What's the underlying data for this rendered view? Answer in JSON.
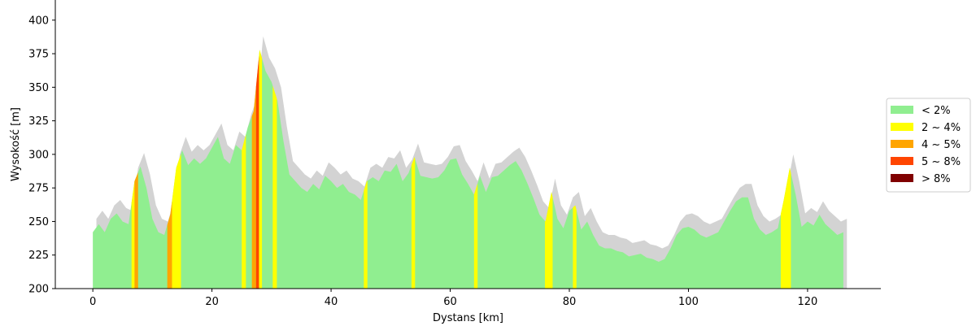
{
  "chart_data": {
    "type": "area",
    "xlabel": "Dystans [km]",
    "ylabel": "Wysokość [m]",
    "xlim": [
      -6.3,
      132.3
    ],
    "ylim": [
      200,
      415
    ],
    "x_ticks": [
      0,
      20,
      40,
      60,
      80,
      100,
      120
    ],
    "y_ticks": [
      200,
      225,
      250,
      275,
      300,
      325,
      350,
      375,
      400
    ],
    "grid": false,
    "legend_position": "center-right",
    "legend": [
      {
        "label": "< 2%",
        "color": "#90ee90"
      },
      {
        "label": "2 ~ 4%",
        "color": "#ffff00"
      },
      {
        "label": "4 ~ 5%",
        "color": "#ffa500"
      },
      {
        "label": "5 ~ 8%",
        "color": "#ff4500"
      },
      {
        "label": "> 8%",
        "color": "#800000"
      }
    ],
    "shadow_color": "#d3d3d3",
    "shadow_offset_km": 0.6,
    "shadow_offset_m": 10,
    "profile": {
      "x": [
        0,
        1,
        2,
        3,
        4,
        5,
        6,
        7,
        8,
        9,
        10,
        11,
        12,
        13,
        14,
        15,
        16,
        17,
        18,
        19,
        20,
        21,
        22,
        23,
        24,
        25,
        26,
        27,
        28,
        29,
        30,
        31,
        32,
        33,
        34,
        35,
        36,
        37,
        38,
        39,
        40,
        41,
        42,
        43,
        44,
        45,
        46,
        47,
        48,
        49,
        50,
        51,
        52,
        53,
        54,
        55,
        56,
        57,
        58,
        59,
        60,
        61,
        62,
        63,
        64,
        65,
        66,
        67,
        68,
        69,
        70,
        71,
        72,
        73,
        74,
        75,
        76,
        77,
        78,
        79,
        80,
        81,
        82,
        83,
        84,
        85,
        86,
        87,
        88,
        89,
        90,
        91,
        92,
        93,
        94,
        95,
        96,
        97,
        98,
        99,
        100,
        101,
        102,
        103,
        104,
        105,
        106,
        107,
        108,
        109,
        110,
        111,
        112,
        113,
        114,
        115,
        116,
        117,
        118,
        119,
        120,
        121,
        122,
        123,
        124,
        125,
        126
      ],
      "y": [
        242,
        248,
        242,
        252,
        256,
        250,
        248,
        280,
        291,
        275,
        252,
        242,
        240,
        255,
        290,
        303,
        292,
        297,
        293,
        297,
        305,
        313,
        297,
        293,
        307,
        303,
        320,
        332,
        378,
        362,
        354,
        340,
        310,
        285,
        280,
        275,
        272,
        278,
        274,
        284,
        280,
        275,
        278,
        272,
        270,
        266,
        280,
        283,
        280,
        288,
        287,
        293,
        280,
        286,
        298,
        284,
        283,
        282,
        283,
        288,
        296,
        297,
        285,
        278,
        270,
        284,
        272,
        283,
        284,
        288,
        292,
        295,
        288,
        278,
        267,
        255,
        250,
        272,
        252,
        245,
        258,
        262,
        244,
        250,
        240,
        232,
        230,
        230,
        228,
        227,
        224,
        225,
        226,
        223,
        222,
        220,
        222,
        230,
        240,
        245,
        246,
        244,
        240,
        238,
        240,
        242,
        250,
        258,
        265,
        268,
        268,
        252,
        244,
        240,
        242,
        245,
        266,
        290,
        270,
        246,
        250,
        247,
        255,
        248,
        244,
        240,
        242
      ]
    },
    "segments": [
      {
        "range": [
          6.5,
          7.0
        ],
        "grade": "2 ~ 4%"
      },
      {
        "range": [
          7.0,
          7.6
        ],
        "grade": "4 ~ 5%"
      },
      {
        "range": [
          12.5,
          13.3
        ],
        "grade": "4 ~ 5%"
      },
      {
        "range": [
          13.3,
          14.8
        ],
        "grade": "2 ~ 4%"
      },
      {
        "range": [
          25.0,
          25.7
        ],
        "grade": "2 ~ 4%"
      },
      {
        "range": [
          26.7,
          27.4
        ],
        "grade": "4 ~ 5%"
      },
      {
        "range": [
          27.4,
          27.9
        ],
        "grade": "5 ~ 8%"
      },
      {
        "range": [
          27.9,
          28.4
        ],
        "grade": "2 ~ 4%"
      },
      {
        "range": [
          30.2,
          30.9
        ],
        "grade": "2 ~ 4%"
      },
      {
        "range": [
          45.5,
          46.1
        ],
        "grade": "2 ~ 4%"
      },
      {
        "range": [
          53.5,
          54.1
        ],
        "grade": "2 ~ 4%"
      },
      {
        "range": [
          64.0,
          64.6
        ],
        "grade": "2 ~ 4%"
      },
      {
        "range": [
          75.9,
          77.2
        ],
        "grade": "2 ~ 4%"
      },
      {
        "range": [
          80.6,
          81.2
        ],
        "grade": "2 ~ 4%"
      },
      {
        "range": [
          115.5,
          117.2
        ],
        "grade": "2 ~ 4%"
      }
    ]
  }
}
